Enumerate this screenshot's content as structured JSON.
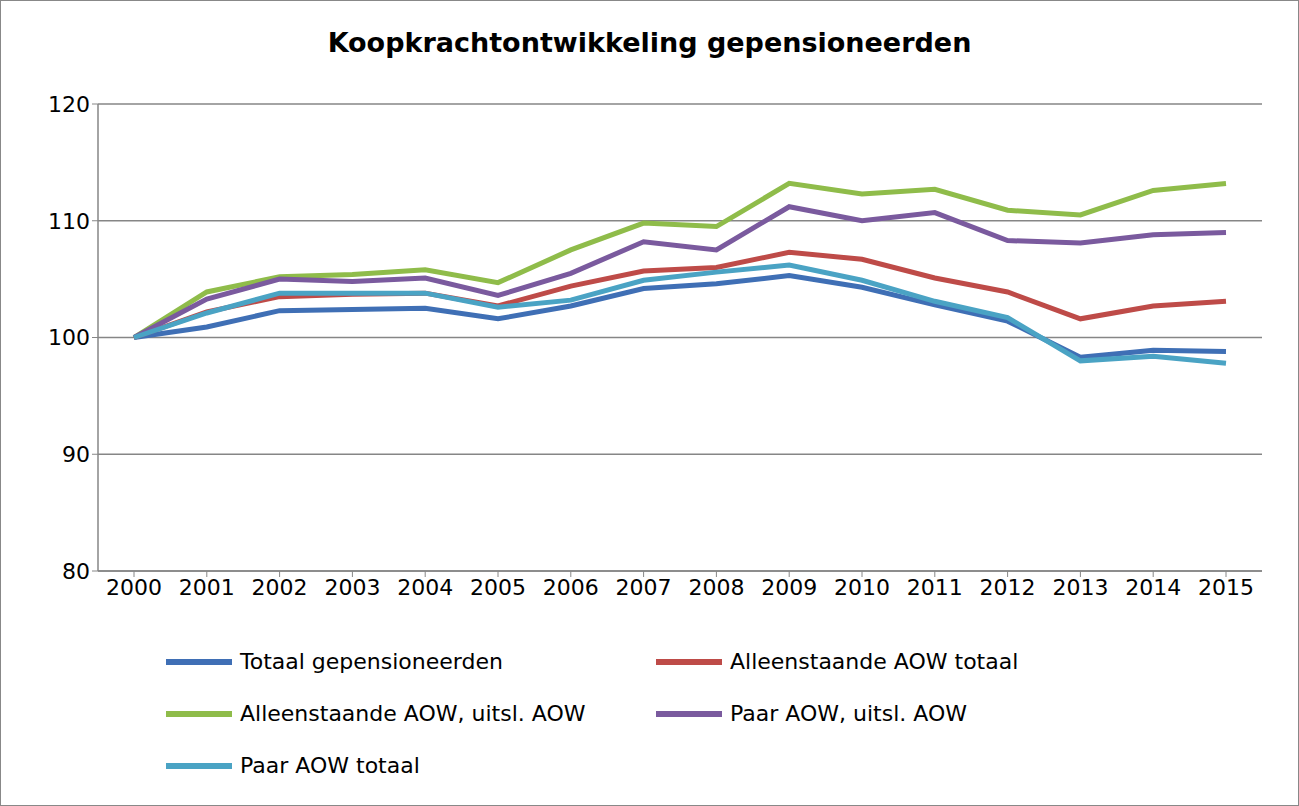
{
  "chart_data": {
    "type": "line",
    "title": "Koopkrachtontwikkeling gepensioneerden",
    "categories": [
      "2000",
      "2001",
      "2002",
      "2003",
      "2004",
      "2005",
      "2006",
      "2007",
      "2008",
      "2009",
      "2010",
      "2011",
      "2012",
      "2013",
      "2014",
      "2015"
    ],
    "series": [
      {
        "name": "Totaal gepensioneerden",
        "color": "#3f6fb5",
        "values": [
          100,
          100.9,
          102.3,
          102.4,
          102.5,
          101.6,
          102.7,
          104.2,
          104.6,
          105.3,
          104.3,
          102.8,
          101.4,
          98.3,
          98.9,
          98.8
        ]
      },
      {
        "name": "Alleenstaande AOW totaal",
        "color": "#be4b48",
        "values": [
          100,
          102.2,
          103.5,
          103.7,
          103.8,
          102.7,
          104.4,
          105.7,
          106.0,
          107.3,
          106.7,
          105.1,
          103.9,
          101.6,
          102.7,
          103.1
        ]
      },
      {
        "name": "Alleenstaande AOW, uitsl. AOW",
        "color": "#8fbc4a",
        "values": [
          100,
          103.9,
          105.2,
          105.4,
          105.8,
          104.7,
          107.5,
          109.8,
          109.5,
          113.2,
          112.3,
          112.7,
          110.9,
          110.5,
          112.6,
          113.2
        ]
      },
      {
        "name": "Paar AOW, uitsl. AOW",
        "color": "#7a5a9e",
        "values": [
          100,
          103.3,
          105.0,
          104.8,
          105.1,
          103.6,
          105.5,
          108.2,
          107.5,
          111.2,
          110.0,
          110.7,
          108.3,
          108.1,
          108.8,
          109.0
        ]
      },
      {
        "name": "Paar AOW totaal",
        "color": "#4aa3c4",
        "values": [
          100,
          102.1,
          103.8,
          103.8,
          103.8,
          102.6,
          103.2,
          104.9,
          105.6,
          106.2,
          104.9,
          103.1,
          101.7,
          98.0,
          98.4,
          97.8
        ]
      }
    ],
    "ylim": [
      80,
      120
    ],
    "yticks": [
      80,
      90,
      100,
      110,
      120
    ],
    "grid": true,
    "legend": "bottom"
  }
}
